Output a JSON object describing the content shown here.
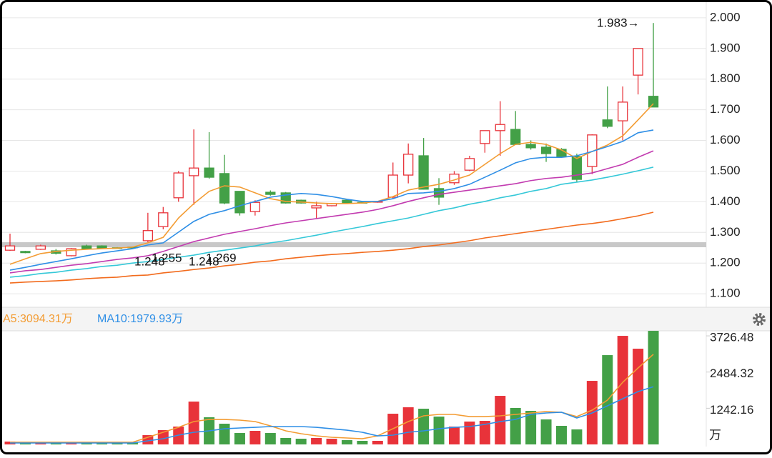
{
  "chart_data": [
    {
      "type": "candlestick",
      "open": [
        1.242,
        1.238,
        1.245,
        1.24,
        1.224,
        1.256,
        1.256,
        1.25,
        1.252,
        1.273,
        1.319,
        1.413,
        1.485,
        1.51,
        1.492,
        1.434,
        1.368,
        1.431,
        1.429,
        1.405,
        1.38,
        1.387,
        1.405,
        1.398,
        1.399,
        1.415,
        1.487,
        1.55,
        1.443,
        1.462,
        1.503,
        1.59,
        1.632,
        1.636,
        1.587,
        1.578,
        1.571,
        1.548,
        1.515,
        1.667,
        1.664,
        1.813,
        1.744
      ],
      "high": [
        1.296,
        1.24,
        1.26,
        1.246,
        1.249,
        1.26,
        1.258,
        1.252,
        1.254,
        1.364,
        1.383,
        1.5,
        1.636,
        1.627,
        1.553,
        1.434,
        1.405,
        1.437,
        1.432,
        1.407,
        1.4,
        1.396,
        1.407,
        1.401,
        1.402,
        1.528,
        1.59,
        1.608,
        1.477,
        1.5,
        1.55,
        1.632,
        1.728,
        1.696,
        1.6,
        1.59,
        1.575,
        1.557,
        1.62,
        1.776,
        1.776,
        1.9,
        1.983
      ],
      "low": [
        1.24,
        1.232,
        1.243,
        1.228,
        1.222,
        1.245,
        1.247,
        1.248,
        1.25,
        1.268,
        1.31,
        1.4,
        1.39,
        1.475,
        1.392,
        1.355,
        1.355,
        1.42,
        1.394,
        1.394,
        1.345,
        1.385,
        1.394,
        1.395,
        1.397,
        1.41,
        1.46,
        1.44,
        1.39,
        1.455,
        1.5,
        1.56,
        1.55,
        1.585,
        1.57,
        1.53,
        1.545,
        1.463,
        1.49,
        1.64,
        1.6,
        1.75,
        1.71
      ],
      "close": [
        1.256,
        1.234,
        1.256,
        1.232,
        1.247,
        1.247,
        1.249,
        1.249,
        1.251,
        1.306,
        1.364,
        1.494,
        1.51,
        1.48,
        1.396,
        1.364,
        1.398,
        1.424,
        1.396,
        1.396,
        1.387,
        1.394,
        1.396,
        1.396,
        1.401,
        1.487,
        1.555,
        1.441,
        1.415,
        1.49,
        1.541,
        1.632,
        1.652,
        1.587,
        1.576,
        1.557,
        1.548,
        1.473,
        1.618,
        1.646,
        1.725,
        1.9,
        1.709
      ],
      "up_color": "#e8333a",
      "down_color": "#43a047",
      "series": [
        {
          "color": "#f39c33",
          "values": [
            1.196,
            1.214,
            1.231,
            1.238,
            1.242,
            1.245,
            1.247,
            1.249,
            1.252,
            1.266,
            1.284,
            1.347,
            1.394,
            1.434,
            1.452,
            1.448,
            1.429,
            1.41,
            1.401,
            1.399,
            1.396,
            1.394,
            1.394,
            1.396,
            1.401,
            1.417,
            1.438,
            1.448,
            1.457,
            1.471,
            1.487,
            1.522,
            1.557,
            1.587,
            1.594,
            1.587,
            1.569,
            1.541,
            1.564,
            1.585,
            1.615,
            1.667,
            1.72
          ]
        },
        {
          "color": "#2f8fe6",
          "values": [
            1.177,
            1.186,
            1.196,
            1.205,
            1.214,
            1.224,
            1.233,
            1.24,
            1.247,
            1.259,
            1.266,
            1.301,
            1.336,
            1.359,
            1.371,
            1.387,
            1.401,
            1.415,
            1.422,
            1.427,
            1.424,
            1.417,
            1.408,
            1.401,
            1.401,
            1.41,
            1.427,
            1.429,
            1.434,
            1.443,
            1.457,
            1.48,
            1.503,
            1.527,
            1.541,
            1.545,
            1.545,
            1.55,
            1.564,
            1.58,
            1.597,
            1.625,
            1.634
          ]
        },
        {
          "color": "#c23bb0",
          "values": [
            1.168,
            1.175,
            1.179,
            1.186,
            1.193,
            1.198,
            1.205,
            1.212,
            1.217,
            1.224,
            1.238,
            1.254,
            1.27,
            1.282,
            1.294,
            1.303,
            1.312,
            1.322,
            1.331,
            1.338,
            1.345,
            1.352,
            1.359,
            1.366,
            1.375,
            1.387,
            1.401,
            1.413,
            1.424,
            1.431,
            1.438,
            1.445,
            1.452,
            1.459,
            1.469,
            1.476,
            1.48,
            1.487,
            1.494,
            1.508,
            1.522,
            1.545,
            1.566
          ]
        },
        {
          "color": "#35c8d8",
          "values": [
            1.154,
            1.159,
            1.166,
            1.17,
            1.177,
            1.182,
            1.189,
            1.193,
            1.2,
            1.205,
            1.212,
            1.219,
            1.226,
            1.235,
            1.242,
            1.249,
            1.256,
            1.266,
            1.273,
            1.282,
            1.291,
            1.301,
            1.31,
            1.319,
            1.329,
            1.338,
            1.347,
            1.359,
            1.371,
            1.38,
            1.392,
            1.401,
            1.413,
            1.422,
            1.434,
            1.443,
            1.457,
            1.464,
            1.471,
            1.48,
            1.49,
            1.501,
            1.513
          ]
        },
        {
          "color": "#f26b1d",
          "values": [
            1.135,
            1.138,
            1.14,
            1.142,
            1.145,
            1.149,
            1.152,
            1.154,
            1.159,
            1.161,
            1.168,
            1.173,
            1.179,
            1.184,
            1.191,
            1.196,
            1.203,
            1.207,
            1.214,
            1.219,
            1.224,
            1.228,
            1.231,
            1.235,
            1.238,
            1.242,
            1.247,
            1.254,
            1.259,
            1.266,
            1.273,
            1.282,
            1.289,
            1.296,
            1.303,
            1.31,
            1.317,
            1.324,
            1.329,
            1.336,
            1.345,
            1.354,
            1.366
          ]
        }
      ],
      "ref_line": 1.26,
      "annotations": [
        "1.248",
        "1.255",
        "1.248",
        "1.269",
        "1.983→"
      ],
      "ylim": [
        1.056,
        2.058
      ],
      "yticks": [
        {
          "value": 1.1,
          "label": "1.100"
        },
        {
          "value": 1.2,
          "label": "1.200"
        },
        {
          "value": 1.3,
          "label": "1.300"
        },
        {
          "value": 1.4,
          "label": "1.400"
        },
        {
          "value": 1.5,
          "label": "1.500"
        },
        {
          "value": 1.6,
          "label": "1.600"
        },
        {
          "value": 1.7,
          "label": "1.700"
        },
        {
          "value": 1.8,
          "label": "1.800"
        },
        {
          "value": 1.9,
          "label": "1.900"
        },
        {
          "value": 2,
          "label": "2.000"
        }
      ],
      "grid": true
    },
    {
      "type": "bar",
      "values": [
        98,
        74,
        74,
        49,
        49,
        49,
        49,
        49,
        74,
        319,
        490,
        613,
        1471,
        932,
        711,
        392,
        466,
        392,
        221,
        196,
        221,
        196,
        147,
        123,
        123,
        1054,
        1275,
        1226,
        956,
        613,
        785,
        809,
        1667,
        1251,
        1152,
        858,
        638,
        515,
        2182,
        3065,
        3727,
        3286,
        3899
      ],
      "series": [
        {
          "name": "A5:3094.31万",
          "color": "#f39c33",
          "values": [
            74,
            74,
            74,
            74,
            74,
            74,
            74,
            74,
            74,
            245,
            417,
            588,
            785,
            858,
            858,
            834,
            785,
            638,
            466,
            368,
            294,
            245,
            221,
            196,
            294,
            539,
            785,
            981,
            1030,
            1030,
            956,
            956,
            981,
            1030,
            1079,
            1128,
            1104,
            956,
            1177,
            1520,
            2133,
            2624,
            3094.31
          ]
        },
        {
          "name": "MA10:1979.93万",
          "color": "#2f8fe6",
          "values": [
            49,
            49,
            49,
            49,
            49,
            49,
            49,
            49,
            49,
            123,
            196,
            319,
            417,
            466,
            539,
            564,
            588,
            613,
            613,
            613,
            588,
            539,
            490,
            417,
            294,
            319,
            417,
            466,
            539,
            588,
            613,
            687,
            785,
            858,
            1030,
            1079,
            1104,
            907,
            1079,
            1324,
            1569,
            1814,
            1979.93
          ]
        }
      ],
      "unit": "万",
      "ylim": [
        0,
        3900
      ],
      "yticks": [
        1242.16,
        2484.32,
        3726.48
      ]
    }
  ]
}
